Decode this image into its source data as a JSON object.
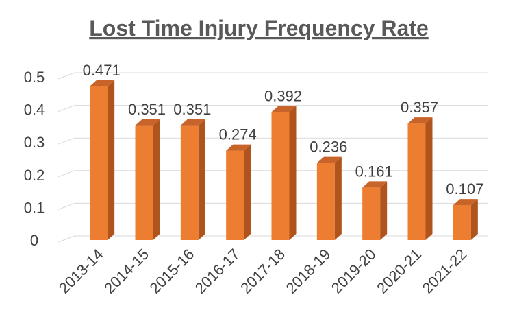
{
  "chart_data": {
    "type": "bar",
    "title": "Lost Time Injury Frequency Rate",
    "xlabel": "",
    "ylabel": "",
    "categories": [
      "2013-14",
      "2014-15",
      "2015-16",
      "2016-17",
      "2017-18",
      "2018-19",
      "2019-20",
      "2020-21",
      "2021-22"
    ],
    "values": [
      0.471,
      0.351,
      0.351,
      0.274,
      0.392,
      0.236,
      0.161,
      0.357,
      0.107
    ],
    "data_labels": [
      "0.471",
      "0.351",
      "0.351",
      "0.274",
      "0.392",
      "0.236",
      "0.161",
      "0.357",
      "0.107"
    ],
    "ylim": [
      0,
      0.5
    ],
    "yticks": [
      "0",
      "0.1",
      "0.2",
      "0.3",
      "0.4",
      "0.5"
    ],
    "grid": true,
    "legend": "none",
    "style": "3d-column",
    "colors": {
      "bar_front": "#ed7d31",
      "bar_side": "#b0541d",
      "bar_top": "#c8632a",
      "grid": "#d9d9d9",
      "text": "#404040",
      "title": "#595959"
    }
  }
}
